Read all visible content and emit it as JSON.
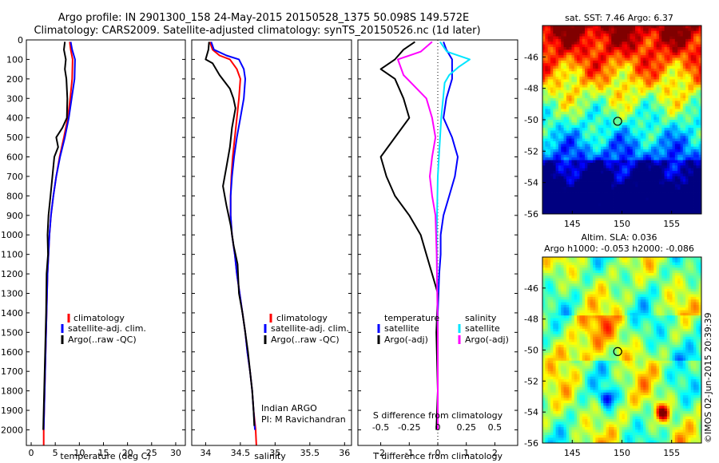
{
  "header": {
    "line1": "Argo profile: IN 2901300_158 24-May-2015 20150528_1375 50.098S 149.572E",
    "line2": "Climatology: CARS2009. Satellite-adjusted climatology: synTS_20150526.nc (1d later)"
  },
  "colors": {
    "climatology": "#ff0000",
    "satellite": "#0000ff",
    "argo": "#000000",
    "s_satellite": "#00e5ff",
    "s_argo": "#ff00ff",
    "s_diff_label_color": "#000000"
  },
  "chart_data": [
    {
      "type": "line",
      "xlabel": "temperature (deg C)",
      "ylabel": "",
      "xlim": [
        -1,
        32
      ],
      "ylim": [
        2080,
        0
      ],
      "xticks": [
        0,
        5,
        10,
        15,
        20,
        25,
        30
      ],
      "yticks": [
        0,
        100,
        200,
        300,
        400,
        500,
        600,
        700,
        800,
        900,
        1000,
        1100,
        1200,
        1300,
        1400,
        1500,
        1600,
        1700,
        1800,
        1900,
        2000
      ],
      "legend": [
        "climatology",
        "satellite-adj. clim.",
        "Argo(..raw -QC)"
      ],
      "series": [
        {
          "name": "climatology",
          "points": [
            [
              8.0,
              10
            ],
            [
              8.2,
              50
            ],
            [
              8.6,
              100
            ],
            [
              8.5,
              200
            ],
            [
              8.1,
              300
            ],
            [
              7.6,
              400
            ],
            [
              6.8,
              500
            ],
            [
              5.9,
              600
            ],
            [
              5.2,
              700
            ],
            [
              4.6,
              800
            ],
            [
              4.1,
              900
            ],
            [
              3.8,
              1000
            ],
            [
              3.6,
              1100
            ],
            [
              3.4,
              1200
            ],
            [
              3.2,
              1400
            ],
            [
              3.0,
              1600
            ],
            [
              2.8,
              1800
            ],
            [
              2.6,
              2000
            ],
            [
              2.6,
              2080
            ]
          ]
        },
        {
          "name": "satellite-adj. clim.",
          "points": [
            [
              8.2,
              10
            ],
            [
              8.5,
              50
            ],
            [
              9.1,
              100
            ],
            [
              9.0,
              200
            ],
            [
              8.4,
              300
            ],
            [
              7.8,
              400
            ],
            [
              7.0,
              500
            ],
            [
              6.0,
              600
            ],
            [
              5.2,
              700
            ],
            [
              4.6,
              800
            ],
            [
              4.1,
              900
            ],
            [
              3.8,
              1000
            ],
            [
              3.6,
              1100
            ],
            [
              3.4,
              1200
            ],
            [
              3.2,
              1400
            ],
            [
              3.0,
              1600
            ],
            [
              2.8,
              1800
            ],
            [
              2.6,
              2000
            ]
          ]
        },
        {
          "name": "Argo(..raw -QC)",
          "points": [
            [
              7.0,
              10
            ],
            [
              6.8,
              50
            ],
            [
              7.2,
              100
            ],
            [
              7.0,
              150
            ],
            [
              7.3,
              200
            ],
            [
              7.5,
              300
            ],
            [
              7.4,
              400
            ],
            [
              6.5,
              450
            ],
            [
              5.2,
              500
            ],
            [
              5.6,
              550
            ],
            [
              4.8,
              600
            ],
            [
              4.4,
              700
            ],
            [
              4.0,
              800
            ],
            [
              3.6,
              900
            ],
            [
              3.4,
              1000
            ],
            [
              3.5,
              1100
            ],
            [
              3.2,
              1200
            ],
            [
              3.1,
              1400
            ],
            [
              2.9,
              1600
            ],
            [
              2.7,
              1800
            ],
            [
              2.5,
              2000
            ]
          ]
        }
      ]
    },
    {
      "type": "line",
      "xlabel": "salinity",
      "ylabel": "",
      "xlim": [
        33.8,
        36.1
      ],
      "ylim": [
        2080,
        0
      ],
      "xticks": [
        34,
        34.5,
        35,
        35.5,
        36
      ],
      "legend": [
        "climatology",
        "satellite-adj. clim.",
        "Argo(..raw -QC)"
      ],
      "annotation": [
        "Indian ARGO",
        "PI: M Ravichandran"
      ],
      "series": [
        {
          "name": "climatology",
          "points": [
            [
              34.06,
              10
            ],
            [
              34.1,
              50
            ],
            [
              34.2,
              80
            ],
            [
              34.35,
              100
            ],
            [
              34.45,
              150
            ],
            [
              34.5,
              200
            ],
            [
              34.48,
              300
            ],
            [
              34.45,
              400
            ],
            [
              34.42,
              500
            ],
            [
              34.39,
              600
            ],
            [
              34.37,
              700
            ],
            [
              34.36,
              800
            ],
            [
              34.36,
              900
            ],
            [
              34.38,
              1000
            ],
            [
              34.42,
              1100
            ],
            [
              34.45,
              1200
            ],
            [
              34.49,
              1300
            ],
            [
              34.53,
              1400
            ],
            [
              34.57,
              1500
            ],
            [
              34.6,
              1600
            ],
            [
              34.64,
              1700
            ],
            [
              34.67,
              1800
            ],
            [
              34.69,
              1900
            ],
            [
              34.72,
              2000
            ],
            [
              34.73,
              2080
            ]
          ]
        },
        {
          "name": "satellite-adj. clim.",
          "points": [
            [
              34.08,
              10
            ],
            [
              34.12,
              50
            ],
            [
              34.3,
              80
            ],
            [
              34.48,
              100
            ],
            [
              34.55,
              150
            ],
            [
              34.57,
              200
            ],
            [
              34.55,
              300
            ],
            [
              34.5,
              400
            ],
            [
              34.45,
              500
            ],
            [
              34.41,
              600
            ],
            [
              34.38,
              700
            ],
            [
              34.36,
              800
            ],
            [
              34.36,
              900
            ],
            [
              34.38,
              1000
            ],
            [
              34.42,
              1100
            ],
            [
              34.45,
              1200
            ],
            [
              34.49,
              1300
            ],
            [
              34.53,
              1400
            ],
            [
              34.57,
              1500
            ],
            [
              34.6,
              1600
            ],
            [
              34.64,
              1700
            ],
            [
              34.67,
              1800
            ],
            [
              34.69,
              1900
            ],
            [
              34.71,
              2000
            ]
          ]
        },
        {
          "name": "Argo(..raw -QC)",
          "points": [
            [
              34.05,
              10
            ],
            [
              34.04,
              50
            ],
            [
              34.0,
              100
            ],
            [
              34.1,
              120
            ],
            [
              34.2,
              180
            ],
            [
              34.35,
              250
            ],
            [
              34.4,
              300
            ],
            [
              34.43,
              350
            ],
            [
              34.38,
              450
            ],
            [
              34.35,
              550
            ],
            [
              34.3,
              650
            ],
            [
              34.25,
              750
            ],
            [
              34.3,
              850
            ],
            [
              34.36,
              950
            ],
            [
              34.4,
              1050
            ],
            [
              34.46,
              1150
            ],
            [
              34.48,
              1300
            ],
            [
              34.53,
              1400
            ],
            [
              34.57,
              1500
            ],
            [
              34.61,
              1600
            ],
            [
              34.64,
              1700
            ],
            [
              34.67,
              1800
            ],
            [
              34.69,
              1900
            ],
            [
              34.7,
              1980
            ]
          ]
        }
      ]
    },
    {
      "type": "line",
      "xlabel": "T difference from climatology",
      "x2label": "S difference from climatology",
      "xlim": [
        -2.8,
        2.8
      ],
      "ylim": [
        2080,
        0
      ],
      "xticks": [
        -2,
        -1,
        0,
        1,
        2
      ],
      "x2ticks": [
        "-0.5",
        "-0.25",
        "0",
        "0.25",
        "0.5"
      ],
      "legend_temperature": {
        "title": "temperature",
        "entries": [
          "satellite",
          "Argo(-adj)"
        ]
      },
      "legend_salinity": {
        "title": "salinity",
        "entries": [
          "satellite",
          "Argo(-adj)"
        ]
      },
      "series": [
        {
          "name": "temperature satellite",
          "points": [
            [
              0.2,
              10
            ],
            [
              0.3,
              50
            ],
            [
              0.5,
              100
            ],
            [
              0.5,
              200
            ],
            [
              0.3,
              300
            ],
            [
              0.2,
              400
            ],
            [
              0.5,
              500
            ],
            [
              0.6,
              550
            ],
            [
              0.7,
              600
            ],
            [
              0.6,
              700
            ],
            [
              0.4,
              800
            ],
            [
              0.2,
              900
            ],
            [
              0.1,
              1000
            ],
            [
              0.1,
              1100
            ],
            [
              0.05,
              1200
            ],
            [
              0.0,
              1400
            ],
            [
              0.0,
              2000
            ]
          ]
        },
        {
          "name": "temperature Argo(-adj)",
          "points": [
            [
              -0.8,
              10
            ],
            [
              -1.2,
              50
            ],
            [
              -1.5,
              100
            ],
            [
              -2.0,
              150
            ],
            [
              -1.5,
              200
            ],
            [
              -1.2,
              300
            ],
            [
              -1.0,
              400
            ],
            [
              -1.5,
              500
            ],
            [
              -2.0,
              600
            ],
            [
              -1.8,
              700
            ],
            [
              -1.5,
              800
            ],
            [
              -1.0,
              900
            ],
            [
              -0.6,
              1000
            ],
            [
              -0.4,
              1100
            ],
            [
              -0.2,
              1200
            ],
            [
              0.0,
              1300
            ],
            [
              -0.05,
              1500
            ],
            [
              0.0,
              1800
            ],
            [
              -0.05,
              2000
            ]
          ]
        },
        {
          "name": "salinity satellite",
          "points": [
            [
              0.02,
              10
            ],
            [
              0.08,
              60
            ],
            [
              0.28,
              100
            ],
            [
              0.18,
              140
            ],
            [
              0.1,
              180
            ],
            [
              0.06,
              220
            ],
            [
              0.03,
              400
            ],
            [
              0.0,
              700
            ],
            [
              -0.01,
              1000
            ],
            [
              0.0,
              1500
            ],
            [
              0.0,
              2000
            ]
          ]
        },
        {
          "name": "salinity Argo(-adj)",
          "points": [
            [
              -0.05,
              10
            ],
            [
              -0.15,
              60
            ],
            [
              -0.35,
              100
            ],
            [
              -0.3,
              180
            ],
            [
              -0.1,
              300
            ],
            [
              -0.05,
              400
            ],
            [
              -0.02,
              500
            ],
            [
              -0.05,
              600
            ],
            [
              -0.07,
              700
            ],
            [
              -0.05,
              800
            ],
            [
              -0.02,
              900
            ],
            [
              -0.01,
              1100
            ],
            [
              0.0,
              1500
            ],
            [
              0.0,
              2000
            ]
          ]
        }
      ]
    },
    {
      "type": "heatmap",
      "title": "sat. SST: 7.46  Argo: 6.37",
      "xlim": [
        142,
        158
      ],
      "ylim": [
        -56,
        -44
      ],
      "xticks": [
        145,
        150,
        155
      ],
      "yticks": [
        -46,
        -48,
        -50,
        -52,
        -54,
        -56
      ],
      "marker": {
        "lon": 149.572,
        "lat": -50.098
      }
    },
    {
      "type": "heatmap",
      "title_line1": "Altim. SLA: 0.036",
      "title_line2": "Argo h1000: -0.053 h2000: -0.086",
      "xlim": [
        142,
        158
      ],
      "ylim": [
        -56,
        -44
      ],
      "xticks": [
        145,
        150,
        155
      ],
      "yticks": [
        -46,
        -48,
        -50,
        -52,
        -54,
        -56
      ],
      "marker": {
        "lon": 149.572,
        "lat": -50.098
      }
    }
  ],
  "stamp": "©IMOS 02-Jun-2015 20:39:39"
}
